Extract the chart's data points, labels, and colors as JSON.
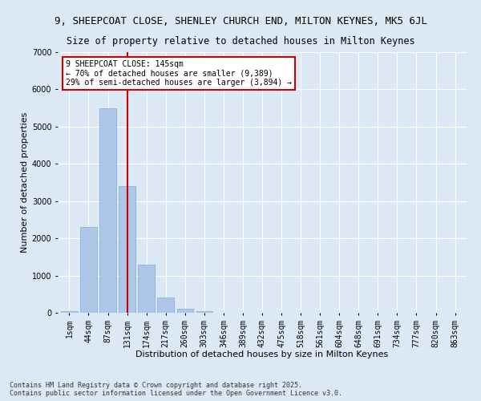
{
  "title_line1": "9, SHEEPCOAT CLOSE, SHENLEY CHURCH END, MILTON KEYNES, MK5 6JL",
  "title_line2": "Size of property relative to detached houses in Milton Keynes",
  "xlabel": "Distribution of detached houses by size in Milton Keynes",
  "ylabel": "Number of detached properties",
  "categories": [
    "1sqm",
    "44sqm",
    "87sqm",
    "131sqm",
    "174sqm",
    "217sqm",
    "260sqm",
    "303sqm",
    "346sqm",
    "389sqm",
    "432sqm",
    "475sqm",
    "518sqm",
    "561sqm",
    "604sqm",
    "648sqm",
    "691sqm",
    "734sqm",
    "777sqm",
    "820sqm",
    "863sqm"
  ],
  "values": [
    50,
    2300,
    5500,
    3400,
    1300,
    400,
    100,
    50,
    0,
    0,
    0,
    0,
    0,
    0,
    0,
    0,
    0,
    0,
    0,
    0,
    0
  ],
  "bar_color": "#aec6e8",
  "bar_edge_color": "#7aadd4",
  "vline_x_index": 3,
  "vline_color": "#cc0000",
  "annotation_text": "9 SHEEPCOAT CLOSE: 145sqm\n← 70% of detached houses are smaller (9,389)\n29% of semi-detached houses are larger (3,894) →",
  "annotation_box_color": "#cc0000",
  "bg_color": "#dce9f5",
  "ylim": [
    0,
    7000
  ],
  "yticks": [
    0,
    1000,
    2000,
    3000,
    4000,
    5000,
    6000,
    7000
  ],
  "footer_line1": "Contains HM Land Registry data © Crown copyright and database right 2025.",
  "footer_line2": "Contains public sector information licensed under the Open Government Licence v3.0.",
  "title_fontsize": 9,
  "subtitle_fontsize": 8.5,
  "axis_label_fontsize": 8,
  "tick_fontsize": 7,
  "annotation_fontsize": 7,
  "footer_fontsize": 6
}
